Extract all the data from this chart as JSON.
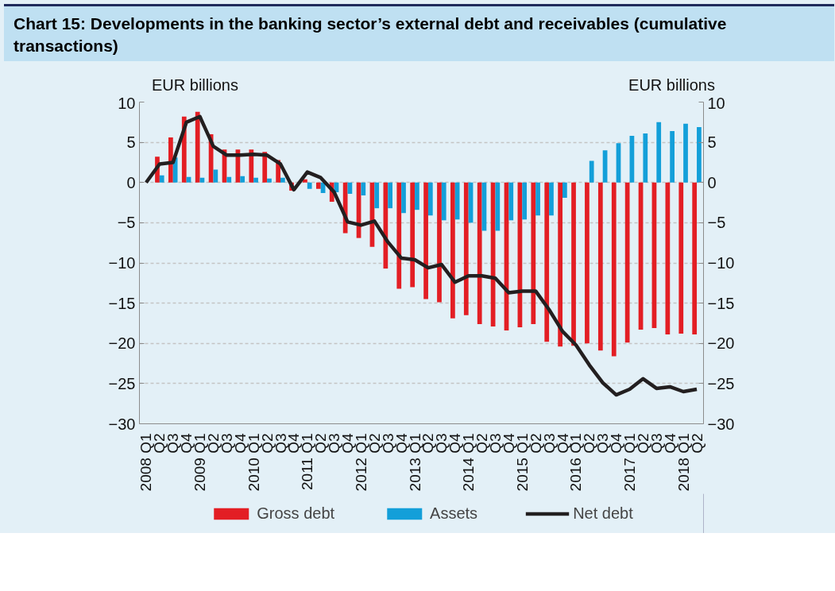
{
  "chart_data": {
    "type": "bar",
    "title": "Chart 15: Developments in the banking sector’s external debt and receivables (cumulative transactions)",
    "ylabel": "EUR billions",
    "y2label": "EUR billions",
    "categories": [
      "2008 Q1",
      "Q2",
      "Q3",
      "Q4",
      "2009 Q1",
      "Q2",
      "Q3",
      "Q4",
      "2010 Q1",
      "Q2",
      "Q3",
      "Q4",
      "2011 Q1",
      "Q2",
      "Q3",
      "Q4",
      "2012 Q1",
      "Q2",
      "Q3",
      "Q4",
      "2013 Q1",
      "Q2",
      "Q3",
      "Q4",
      "2014 Q1",
      "Q2",
      "Q3",
      "Q4",
      "2015 Q1",
      "Q2",
      "Q3",
      "Q4",
      "2016 Q1",
      "Q2",
      "Q3",
      "Q4",
      "2017 Q1",
      "Q2",
      "Q3",
      "Q4",
      "2018 Q1",
      "Q2"
    ],
    "series": [
      {
        "name": "Gross debt",
        "color": "#e31e24",
        "values": [
          null,
          3.2,
          5.6,
          8.2,
          8.8,
          6.0,
          4.1,
          4.1,
          4.1,
          3.8,
          2.8,
          -1.0,
          0.4,
          -0.8,
          -2.4,
          -6.3,
          -6.9,
          -8.0,
          -10.7,
          -13.2,
          -13.0,
          -14.5,
          -14.9,
          -16.9,
          -16.5,
          -17.6,
          -17.9,
          -18.4,
          -18.0,
          -17.6,
          -19.8,
          -20.4,
          -20.3,
          -20.0,
          -20.9,
          -21.6,
          -19.9,
          -18.3,
          -18.1,
          -18.9,
          -18.8,
          -18.9
        ]
      },
      {
        "name": "Assets",
        "color": "#139fd9",
        "values": [
          null,
          0.9,
          3.1,
          0.7,
          0.6,
          1.6,
          0.7,
          0.8,
          0.6,
          0.5,
          0.6,
          null,
          -0.8,
          -1.3,
          -1.2,
          -1.4,
          -1.6,
          -3.2,
          -3.2,
          -3.8,
          -3.4,
          -4.1,
          -4.7,
          -4.6,
          -5.0,
          -6.0,
          -6.0,
          -4.7,
          -4.6,
          -4.1,
          -4.1,
          -1.9,
          null,
          2.7,
          4.0,
          4.9,
          5.8,
          6.1,
          7.5,
          6.4,
          7.3,
          6.9
        ]
      },
      {
        "name": "Net debt",
        "type": "line",
        "color": "#231f20",
        "values": [
          0,
          2.3,
          2.5,
          7.5,
          8.2,
          4.5,
          3.4,
          3.4,
          3.5,
          3.4,
          2.3,
          -0.9,
          1.3,
          0.6,
          -1.2,
          -4.9,
          -5.3,
          -4.8,
          -7.4,
          -9.4,
          -9.6,
          -10.6,
          -10.2,
          -12.4,
          -11.6,
          -11.6,
          -11.9,
          -13.7,
          -13.5,
          -13.5,
          -15.8,
          -18.5,
          -20.2,
          -22.7,
          -24.9,
          -26.4,
          -25.7,
          -24.4,
          -25.6,
          -25.4,
          -26.0,
          -25.7
        ]
      }
    ],
    "ylim": [
      -30,
      10
    ],
    "yticks": [
      -30,
      -25,
      -20,
      -15,
      -10,
      -5,
      0,
      5,
      10
    ],
    "y2lim": [
      -30,
      10
    ],
    "y2ticks": [
      -30,
      -25,
      -20,
      -15,
      -10,
      -5,
      0,
      5,
      10
    ],
    "grid": "y",
    "legend": "bottom",
    "line_style": "solid",
    "marker": "none"
  }
}
